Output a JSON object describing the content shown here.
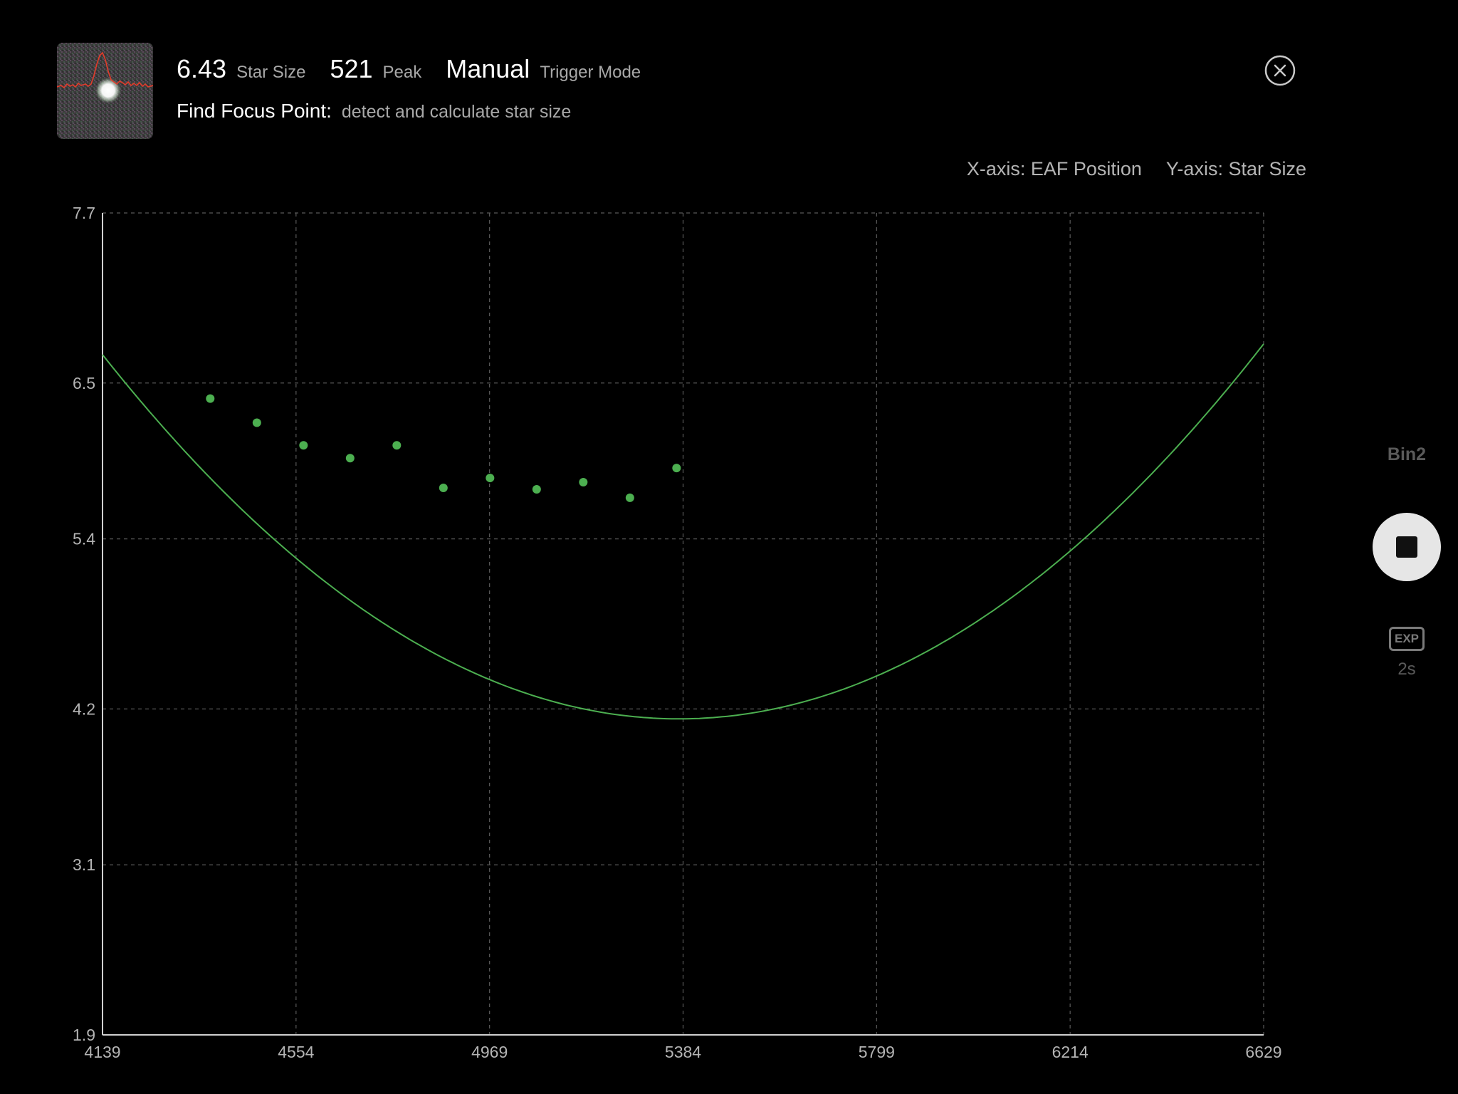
{
  "header": {
    "star_size_value": "6.43",
    "star_size_label": "Star Size",
    "peak_value": "521",
    "peak_label": "Peak",
    "trigger_value": "Manual",
    "trigger_label": "Trigger Mode",
    "task_title": "Find Focus Point:",
    "task_description": "detect and calculate star size"
  },
  "axis_info": {
    "x": "X-axis: EAF Position",
    "y": "Y-axis: Star Size"
  },
  "sidebar": {
    "bin_label": "Bin2",
    "exp_label": "EXP",
    "exp_value": "2s"
  },
  "icons": {
    "close": "close-circle-icon",
    "stop": "stop-icon",
    "thumbnail": "star-profile-thumbnail"
  },
  "colors": {
    "accent_green": "#4caf50",
    "profile_red": "#e23b2a",
    "background": "#000000",
    "grid": "#5a5a5a"
  },
  "chart_data": {
    "type": "scatter",
    "x_ticks": [
      "4139",
      "4554",
      "4969",
      "5384",
      "5799",
      "6214",
      "6629"
    ],
    "y_ticks": [
      "1.9",
      "3.1",
      "4.2",
      "5.4",
      "6.5",
      "7.7"
    ],
    "xlim": [
      4139,
      6629
    ],
    "ylim": [
      1.9,
      7.7
    ],
    "grid": true,
    "series": [
      {
        "type": "scatter",
        "color": "#4caf50",
        "points": [
          {
            "x": 4370,
            "y": 6.39
          },
          {
            "x": 4470,
            "y": 6.22
          },
          {
            "x": 4570,
            "y": 6.06
          },
          {
            "x": 4670,
            "y": 5.97
          },
          {
            "x": 4770,
            "y": 6.06
          },
          {
            "x": 4870,
            "y": 5.76
          },
          {
            "x": 4970,
            "y": 5.83
          },
          {
            "x": 5070,
            "y": 5.75
          },
          {
            "x": 5170,
            "y": 5.8
          },
          {
            "x": 5270,
            "y": 5.69
          },
          {
            "x": 5370,
            "y": 5.9
          }
        ]
      },
      {
        "type": "line",
        "color": "#4caf50",
        "curve": "quadratic fit",
        "vertex": {
          "x": 5375,
          "y": 4.13
        },
        "points": [
          {
            "x": 4139,
            "y": 6.7
          },
          {
            "x": 4554,
            "y": 5.4
          },
          {
            "x": 4969,
            "y": 4.45
          },
          {
            "x": 5384,
            "y": 4.13
          },
          {
            "x": 5799,
            "y": 4.45
          },
          {
            "x": 6214,
            "y": 5.4
          },
          {
            "x": 6629,
            "y": 6.8
          }
        ]
      }
    ]
  }
}
